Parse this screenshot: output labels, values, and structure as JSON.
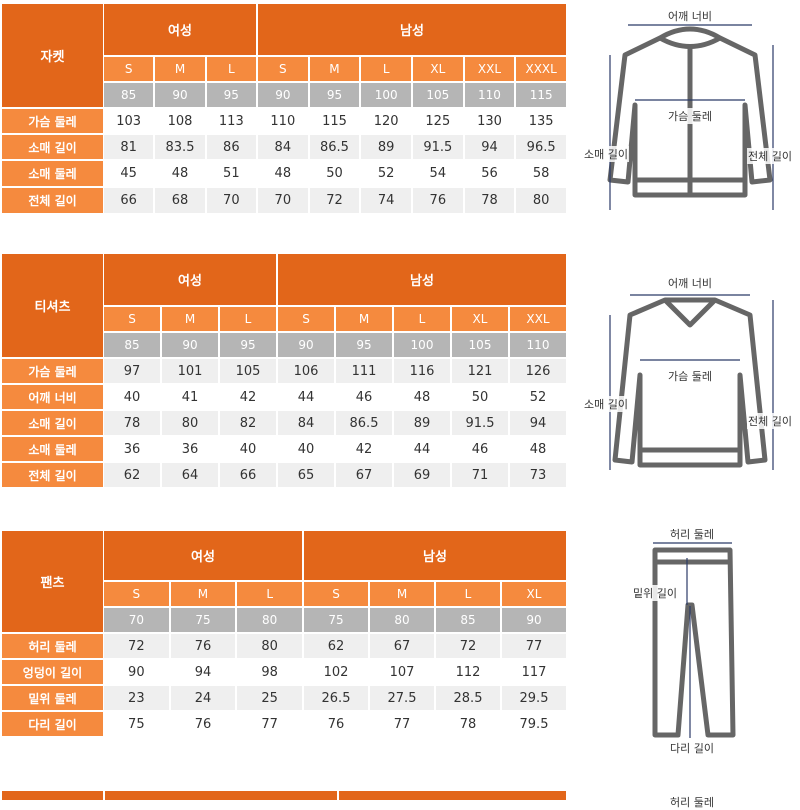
{
  "colors": {
    "header": "#e2661a",
    "size_row": "#f58a3e",
    "number_row": "#b5b5b5",
    "stripe": "#efefef"
  },
  "tables": [
    {
      "title": "자켓",
      "groups": [
        {
          "label": "여성",
          "count": 3
        },
        {
          "label": "남성",
          "count": 6
        }
      ],
      "sizes": [
        "S",
        "M",
        "L",
        "S",
        "M",
        "L",
        "XL",
        "XXL",
        "XXXL"
      ],
      "numbers": [
        "85",
        "90",
        "95",
        "90",
        "95",
        "100",
        "105",
        "110",
        "115"
      ],
      "rows": [
        {
          "label": "가슴 둘레",
          "values": [
            "103",
            "108",
            "113",
            "110",
            "115",
            "120",
            "125",
            "130",
            "135"
          ]
        },
        {
          "label": "소매 길이",
          "values": [
            "81",
            "83.5",
            "86",
            "84",
            "86.5",
            "89",
            "91.5",
            "94",
            "96.5"
          ]
        },
        {
          "label": "소매 둘레",
          "values": [
            "45",
            "48",
            "51",
            "48",
            "50",
            "52",
            "54",
            "56",
            "58"
          ]
        },
        {
          "label": "전체 길이",
          "values": [
            "66",
            "68",
            "70",
            "70",
            "72",
            "74",
            "76",
            "78",
            "80"
          ]
        }
      ]
    },
    {
      "title": "티셔츠",
      "groups": [
        {
          "label": "여성",
          "count": 3
        },
        {
          "label": "남성",
          "count": 5
        }
      ],
      "sizes": [
        "S",
        "M",
        "L",
        "S",
        "M",
        "L",
        "XL",
        "XXL"
      ],
      "numbers": [
        "85",
        "90",
        "95",
        "90",
        "95",
        "100",
        "105",
        "110"
      ],
      "rows": [
        {
          "label": "가슴 둘레",
          "values": [
            "97",
            "101",
            "105",
            "106",
            "111",
            "116",
            "121",
            "126"
          ]
        },
        {
          "label": "어깨 너비",
          "values": [
            "40",
            "41",
            "42",
            "44",
            "46",
            "48",
            "50",
            "52"
          ]
        },
        {
          "label": "소매 길이",
          "values": [
            "78",
            "80",
            "82",
            "84",
            "86.5",
            "89",
            "91.5",
            "94"
          ]
        },
        {
          "label": "소매 둘레",
          "values": [
            "36",
            "36",
            "40",
            "40",
            "42",
            "44",
            "46",
            "48"
          ]
        },
        {
          "label": "전체 길이",
          "values": [
            "62",
            "64",
            "66",
            "65",
            "67",
            "69",
            "71",
            "73"
          ]
        }
      ]
    },
    {
      "title": "팬츠",
      "groups": [
        {
          "label": "여성",
          "count": 3
        },
        {
          "label": "남성",
          "count": 4
        }
      ],
      "sizes": [
        "S",
        "M",
        "L",
        "S",
        "M",
        "L",
        "XL"
      ],
      "numbers": [
        "70",
        "75",
        "80",
        "75",
        "80",
        "85",
        "90"
      ],
      "rows": [
        {
          "label": "허리 둘레",
          "values": [
            "72",
            "76",
            "80",
            "62",
            "67",
            "72",
            "77"
          ]
        },
        {
          "label": "엉덩이 길이",
          "values": [
            "90",
            "94",
            "98",
            "102",
            "107",
            "112",
            "117"
          ]
        },
        {
          "label": "밑위 둘레",
          "values": [
            "23",
            "24",
            "25",
            "26.5",
            "27.5",
            "28.5",
            "29.5"
          ]
        },
        {
          "label": "다리 길이",
          "values": [
            "75",
            "76",
            "77",
            "76",
            "77",
            "78",
            "79.5"
          ]
        }
      ]
    }
  ],
  "diagrams": {
    "jacket": {
      "shoulder": "어깨 너비",
      "chest": "가슴 둘레",
      "sleeve": "소매 길이",
      "length": "전체 길이"
    },
    "tshirt": {
      "shoulder": "어깨 너비",
      "chest": "가슴 둘레",
      "sleeve": "소매 길이",
      "length": "전체 길이"
    },
    "pants": {
      "waist": "허리 둘레",
      "rise": "밑위 길이",
      "leg": "다리 길이"
    },
    "next_partial": "허리 둘레"
  }
}
